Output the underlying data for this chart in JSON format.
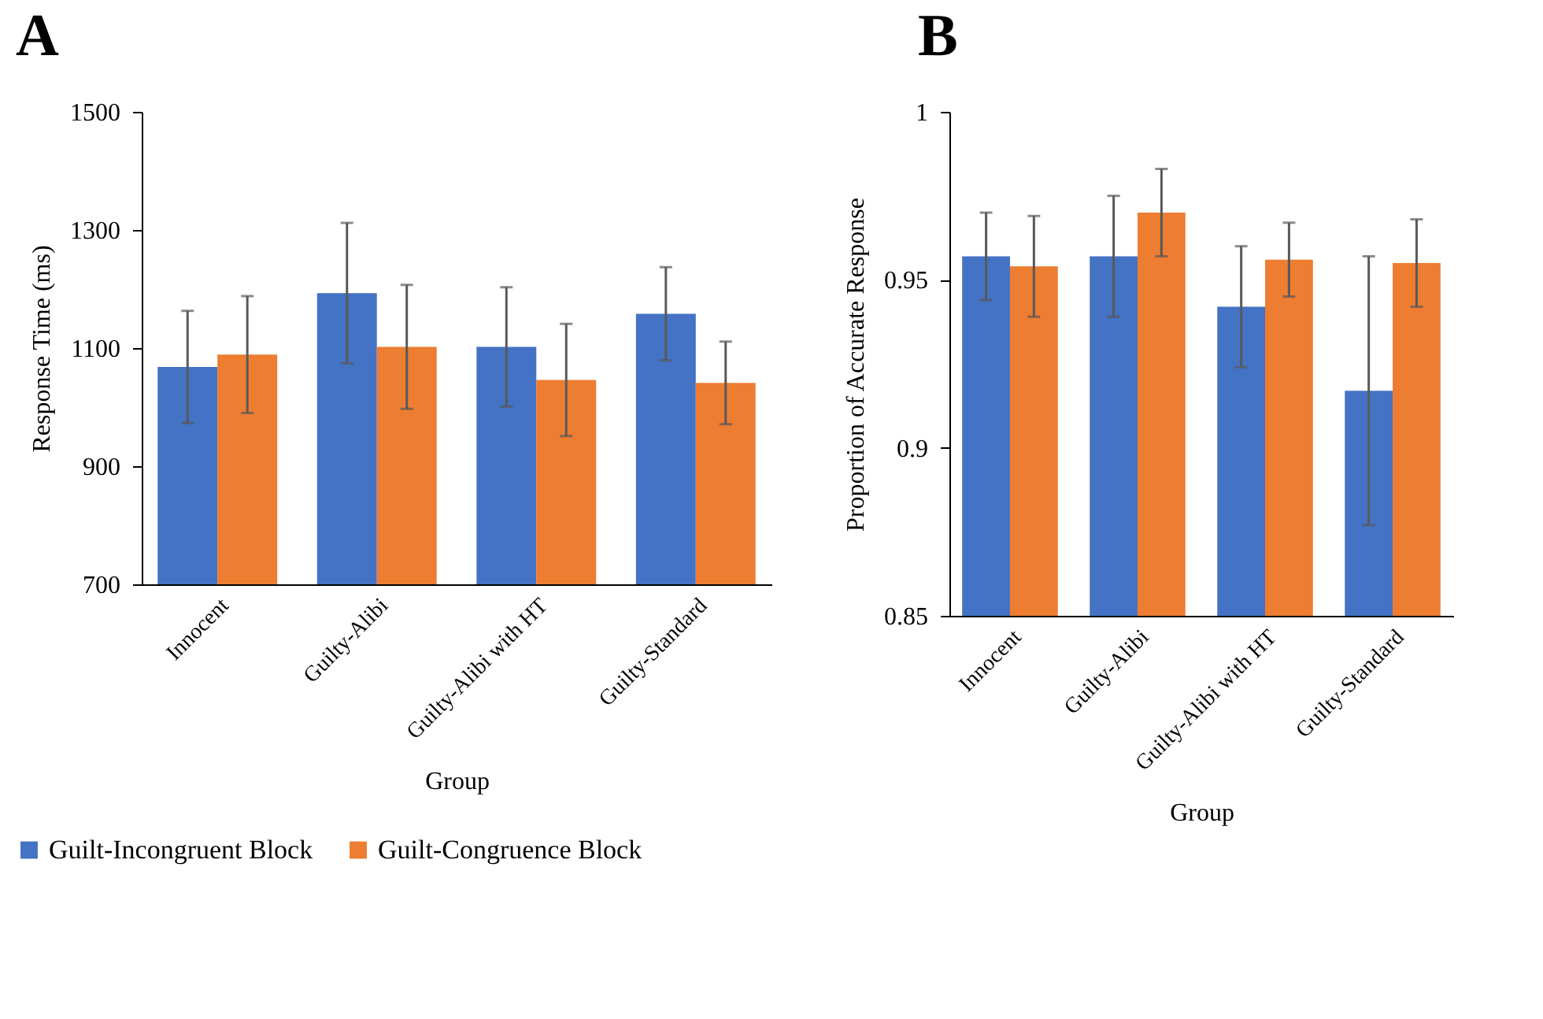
{
  "chart_data": [
    {
      "type": "bar",
      "title": "A",
      "xlabel": "Group",
      "ylabel": "Response Time (ms)",
      "categories": [
        "Innocent",
        "Guilty-Alibi",
        "Guilty-Alibi with HT",
        "Guilty-Standard"
      ],
      "series": [
        {
          "name": "Guilt-Incongruent Block",
          "color": "#4472c4",
          "values": [
            1068,
            1193,
            1102,
            1158
          ],
          "errors": [
            95,
            119,
            101,
            79
          ]
        },
        {
          "name": "Guilt-Congruence Block",
          "color": "#ed7d31",
          "values": [
            1089,
            1102,
            1046,
            1041
          ],
          "errors": [
            99,
            105,
            95,
            70
          ]
        }
      ],
      "ylim": [
        700,
        1500
      ],
      "yticks": [
        700,
        900,
        1100,
        1300,
        1500
      ],
      "grid": false,
      "legend": "bottom left"
    },
    {
      "type": "bar",
      "title": "B",
      "xlabel": "Group",
      "ylabel": "Proportion of Accurate Response",
      "categories": [
        "Innocent",
        "Guilty-Alibi",
        "Guilty-Alibi with HT",
        "Guilty-Standard"
      ],
      "series": [
        {
          "color": "#4472c4",
          "values": [
            0.957,
            0.957,
            0.942,
            0.917
          ],
          "errors": [
            0.013,
            0.018,
            0.018,
            0.04
          ]
        },
        {
          "color": "#ed7d31",
          "values": [
            0.954,
            0.97,
            0.956,
            0.955
          ],
          "errors": [
            0.015,
            0.013,
            0.011,
            0.013
          ]
        }
      ],
      "ylim": [
        0.85,
        1
      ],
      "yticks": [
        0.85,
        0.9,
        0.95,
        1
      ],
      "grid": false
    }
  ]
}
